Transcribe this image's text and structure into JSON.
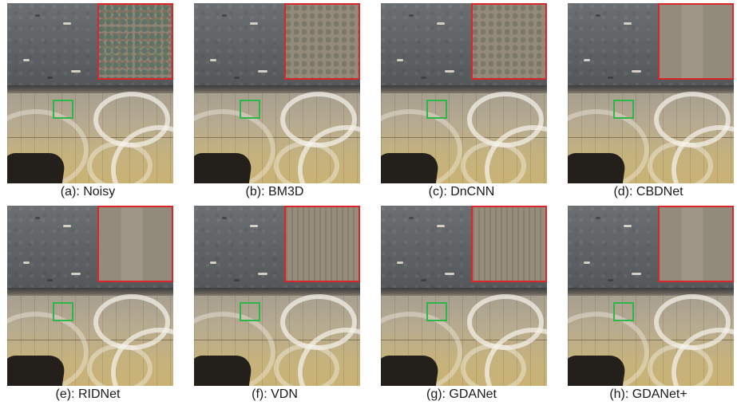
{
  "panels": [
    {
      "caption": "(a): Noisy",
      "zoom_style": "noisy"
    },
    {
      "caption": "(b): BM3D",
      "zoom_style": "semi"
    },
    {
      "caption": "(c): DnCNN",
      "zoom_style": "semi"
    },
    {
      "caption": "(d): CBDNet",
      "zoom_style": "smooth"
    },
    {
      "caption": "(e): RIDNet",
      "zoom_style": "smooth"
    },
    {
      "caption": "(f): VDN",
      "zoom_style": "texture"
    },
    {
      "caption": "(g): GDANet",
      "zoom_style": "texture"
    },
    {
      "caption": "(h): GDANet+",
      "zoom_style": "smooth"
    }
  ],
  "colors": {
    "zoom_border": "#d8262b",
    "roi_border": "#2fb64a"
  }
}
